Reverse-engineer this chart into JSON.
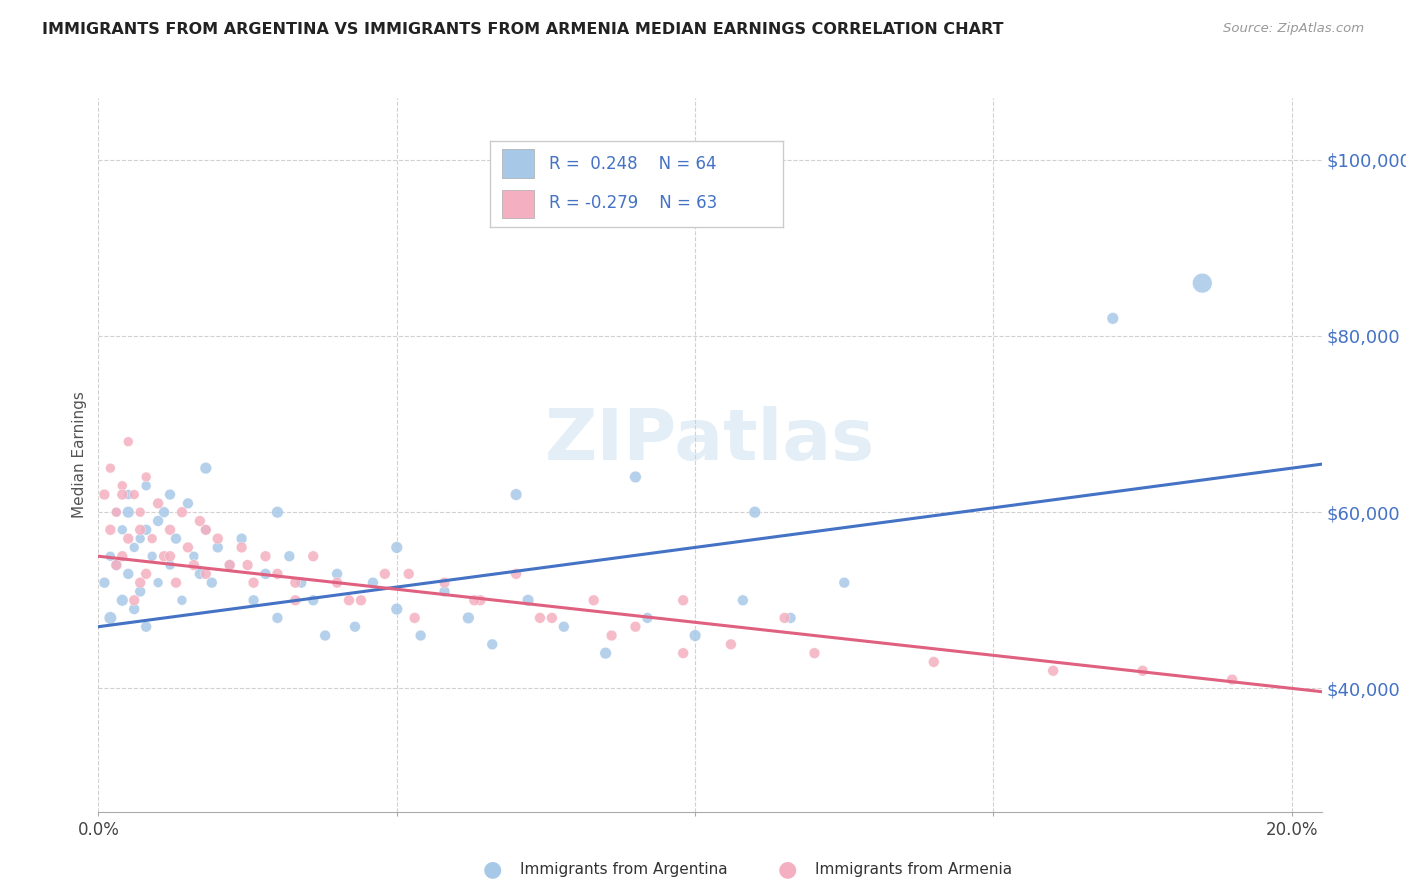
{
  "title": "IMMIGRANTS FROM ARGENTINA VS IMMIGRANTS FROM ARMENIA MEDIAN EARNINGS CORRELATION CHART",
  "source": "Source: ZipAtlas.com",
  "ylabel": "Median Earnings",
  "ytick_labels": [
    "$40,000",
    "$60,000",
    "$80,000",
    "$100,000"
  ],
  "ytick_values": [
    40000,
    60000,
    80000,
    100000
  ],
  "ymin": 26000,
  "ymax": 107000,
  "xmin": 0.0,
  "xmax": 0.205,
  "blue_R": "0.248",
  "blue_N": "64",
  "pink_R": "-0.279",
  "pink_N": "63",
  "legend_label_blue": "Immigrants from Argentina",
  "legend_label_pink": "Immigrants from Armenia",
  "blue_color": "#A8C8E8",
  "pink_color": "#F4B0C0",
  "blue_line_color": "#4472C4",
  "pink_line_color": "#E06080",
  "title_color": "#222222",
  "source_color": "#999999",
  "watermark_color": "#D8E8F4",
  "argentina_x": [
    0.001,
    0.002,
    0.002,
    0.003,
    0.003,
    0.004,
    0.004,
    0.005,
    0.005,
    0.006,
    0.006,
    0.007,
    0.007,
    0.008,
    0.008,
    0.009,
    0.01,
    0.01,
    0.011,
    0.012,
    0.013,
    0.014,
    0.015,
    0.016,
    0.017,
    0.018,
    0.019,
    0.02,
    0.022,
    0.024,
    0.026,
    0.028,
    0.03,
    0.032,
    0.034,
    0.036,
    0.038,
    0.04,
    0.043,
    0.046,
    0.05,
    0.054,
    0.058,
    0.062,
    0.066,
    0.072,
    0.078,
    0.085,
    0.092,
    0.1,
    0.108,
    0.116,
    0.125,
    0.005,
    0.008,
    0.012,
    0.018,
    0.03,
    0.05,
    0.07,
    0.09,
    0.11,
    0.17,
    0.185
  ],
  "argentina_y": [
    52000,
    55000,
    48000,
    60000,
    54000,
    58000,
    50000,
    62000,
    53000,
    56000,
    49000,
    57000,
    51000,
    63000,
    47000,
    55000,
    59000,
    52000,
    60000,
    54000,
    57000,
    50000,
    61000,
    55000,
    53000,
    58000,
    52000,
    56000,
    54000,
    57000,
    50000,
    53000,
    48000,
    55000,
    52000,
    50000,
    46000,
    53000,
    47000,
    52000,
    49000,
    46000,
    51000,
    48000,
    45000,
    50000,
    47000,
    44000,
    48000,
    46000,
    50000,
    48000,
    52000,
    60000,
    58000,
    62000,
    65000,
    60000,
    56000,
    62000,
    64000,
    60000,
    82000,
    86000
  ],
  "argentina_sizes": [
    60,
    50,
    80,
    50,
    60,
    50,
    70,
    50,
    60,
    50,
    60,
    50,
    60,
    50,
    60,
    50,
    60,
    50,
    60,
    50,
    60,
    50,
    60,
    50,
    60,
    50,
    60,
    60,
    60,
    60,
    60,
    60,
    60,
    60,
    60,
    60,
    60,
    60,
    60,
    60,
    70,
    60,
    60,
    70,
    60,
    70,
    60,
    70,
    60,
    70,
    60,
    60,
    60,
    70,
    60,
    60,
    70,
    70,
    70,
    70,
    70,
    70,
    70,
    200
  ],
  "armenia_x": [
    0.001,
    0.002,
    0.002,
    0.003,
    0.003,
    0.004,
    0.004,
    0.005,
    0.005,
    0.006,
    0.006,
    0.007,
    0.007,
    0.008,
    0.008,
    0.009,
    0.01,
    0.011,
    0.012,
    0.013,
    0.014,
    0.015,
    0.016,
    0.017,
    0.018,
    0.02,
    0.022,
    0.024,
    0.026,
    0.028,
    0.03,
    0.033,
    0.036,
    0.04,
    0.044,
    0.048,
    0.053,
    0.058,
    0.064,
    0.07,
    0.076,
    0.083,
    0.09,
    0.098,
    0.106,
    0.115,
    0.004,
    0.007,
    0.012,
    0.018,
    0.025,
    0.033,
    0.042,
    0.052,
    0.063,
    0.074,
    0.086,
    0.098,
    0.12,
    0.14,
    0.16,
    0.175,
    0.19
  ],
  "armenia_y": [
    62000,
    65000,
    58000,
    60000,
    54000,
    63000,
    55000,
    68000,
    57000,
    62000,
    50000,
    60000,
    52000,
    64000,
    53000,
    57000,
    61000,
    55000,
    58000,
    52000,
    60000,
    56000,
    54000,
    59000,
    53000,
    57000,
    54000,
    56000,
    52000,
    55000,
    53000,
    50000,
    55000,
    52000,
    50000,
    53000,
    48000,
    52000,
    50000,
    53000,
    48000,
    50000,
    47000,
    50000,
    45000,
    48000,
    62000,
    58000,
    55000,
    58000,
    54000,
    52000,
    50000,
    53000,
    50000,
    48000,
    46000,
    44000,
    44000,
    43000,
    42000,
    42000,
    41000
  ],
  "armenia_sizes": [
    60,
    50,
    60,
    50,
    60,
    50,
    60,
    50,
    60,
    50,
    60,
    50,
    60,
    50,
    60,
    50,
    60,
    60,
    60,
    60,
    60,
    60,
    60,
    60,
    60,
    60,
    60,
    60,
    60,
    60,
    60,
    60,
    60,
    60,
    60,
    60,
    60,
    60,
    60,
    60,
    60,
    60,
    60,
    60,
    60,
    60,
    60,
    60,
    60,
    60,
    60,
    60,
    60,
    60,
    60,
    60,
    60,
    60,
    60,
    60,
    60,
    60,
    60
  ]
}
